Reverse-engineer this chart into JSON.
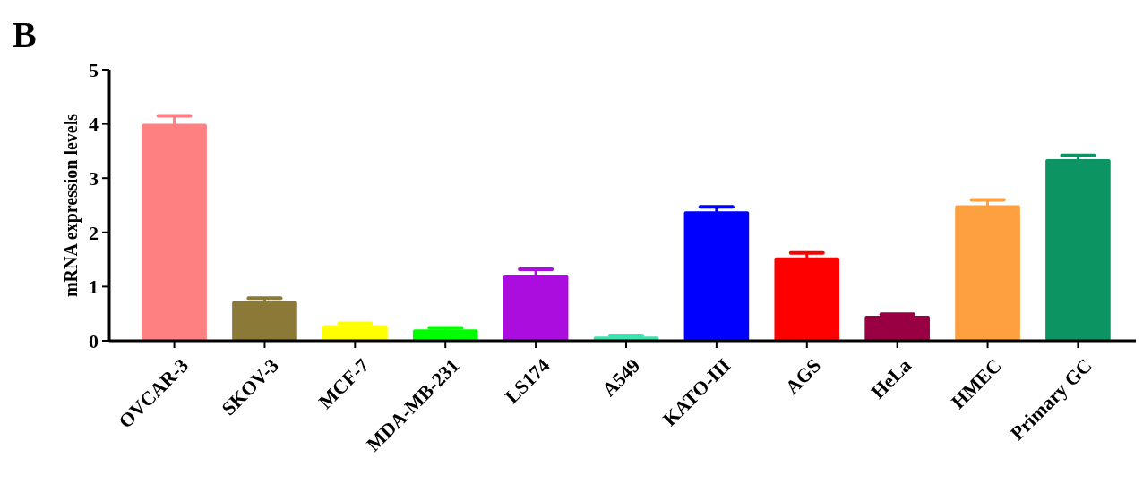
{
  "chart_data": {
    "type": "bar",
    "ylabel": "mRNA expression levels",
    "annotations": [
      "B"
    ],
    "categories": [
      "OVCAR-3",
      "SKOV-3",
      "MCF-7",
      "MDA-MB-231",
      "LS174",
      "A549",
      "KATO-III",
      "AGS",
      "HeLa",
      "HMEC",
      "Primary GC"
    ],
    "values": [
      4.0,
      0.73,
      0.29,
      0.21,
      1.22,
      0.08,
      2.39,
      1.54,
      0.46,
      2.5,
      3.35
    ],
    "errors": [
      0.15,
      0.06,
      0.03,
      0.03,
      0.1,
      0.02,
      0.08,
      0.08,
      0.03,
      0.1,
      0.07
    ],
    "colors": [
      "#ff8080",
      "#8b7a37",
      "#ffff00",
      "#00ff00",
      "#aa0ddd",
      "#40e0b0",
      "#0000ff",
      "#ff0000",
      "#990044",
      "#ffa040",
      "#0c9462"
    ],
    "ylim": [
      0,
      5
    ],
    "yticks": [
      0,
      1,
      2,
      3,
      4,
      5
    ],
    "grid": false
  }
}
